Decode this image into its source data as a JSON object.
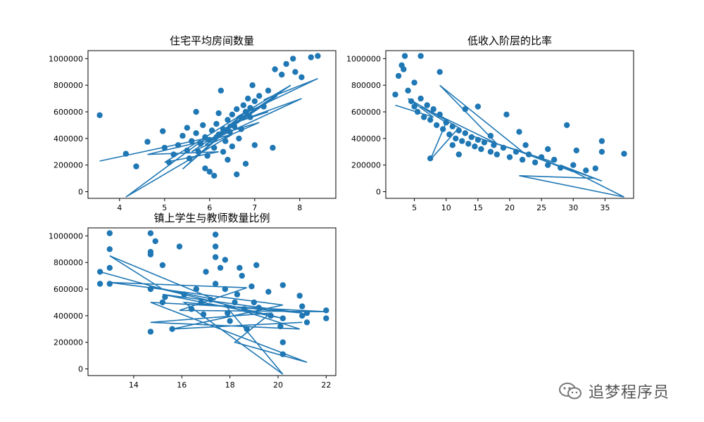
{
  "chart_data": [
    {
      "type": "scatter",
      "title": "住宅平均房间数量",
      "xlim": [
        3.3,
        8.8
      ],
      "ylim": [
        -50000,
        1060000
      ],
      "xticks": [
        4,
        5,
        6,
        7,
        8
      ],
      "yticks": [
        0,
        200000,
        400000,
        600000,
        800000,
        1000000
      ],
      "color": "#1f77b4",
      "points": [
        [
          3.56,
          575000
        ],
        [
          4.14,
          285000
        ],
        [
          4.37,
          190000
        ],
        [
          4.62,
          375000
        ],
        [
          4.96,
          455000
        ],
        [
          5.0,
          330000
        ],
        [
          5.1,
          220000
        ],
        [
          5.2,
          280000
        ],
        [
          5.3,
          350000
        ],
        [
          5.4,
          420000
        ],
        [
          5.5,
          310000
        ],
        [
          5.55,
          250000
        ],
        [
          5.6,
          380000
        ],
        [
          5.7,
          440000
        ],
        [
          5.75,
          300000
        ],
        [
          5.8,
          360000
        ],
        [
          5.85,
          500000
        ],
        [
          5.9,
          410000
        ],
        [
          5.95,
          270000
        ],
        [
          6.0,
          390000
        ],
        [
          6.05,
          460000
        ],
        [
          6.1,
          330000
        ],
        [
          6.15,
          510000
        ],
        [
          6.2,
          430000
        ],
        [
          6.25,
          760000
        ],
        [
          6.3,
          470000
        ],
        [
          6.35,
          380000
        ],
        [
          6.4,
          540000
        ],
        [
          6.45,
          450000
        ],
        [
          6.5,
          580000
        ],
        [
          6.55,
          490000
        ],
        [
          6.6,
          620000
        ],
        [
          6.65,
          400000
        ],
        [
          6.7,
          560000
        ],
        [
          6.75,
          650000
        ],
        [
          6.8,
          600000
        ],
        [
          6.85,
          700000
        ],
        [
          6.9,
          630000
        ],
        [
          6.95,
          800000
        ],
        [
          7.0,
          680000
        ],
        [
          7.1,
          720000
        ],
        [
          7.2,
          640000
        ],
        [
          7.3,
          760000
        ],
        [
          7.4,
          330000
        ],
        [
          7.45,
          920000
        ],
        [
          7.6,
          880000
        ],
        [
          7.7,
          960000
        ],
        [
          7.85,
          1000000
        ],
        [
          7.9,
          900000
        ],
        [
          8.04,
          860000
        ],
        [
          8.25,
          1010000
        ],
        [
          8.4,
          1020000
        ],
        [
          6.0,
          150000
        ],
        [
          6.1,
          120000
        ],
        [
          6.4,
          240000
        ],
        [
          5.9,
          175000
        ],
        [
          6.6,
          130000
        ],
        [
          6.8,
          210000
        ],
        [
          5.7,
          600000
        ],
        [
          5.5,
          480000
        ],
        [
          6.3,
          300000
        ],
        [
          6.5,
          340000
        ],
        [
          6.2,
          590000
        ],
        [
          6.7,
          470000
        ],
        [
          6.9,
          560000
        ],
        [
          7.0,
          350000
        ]
      ],
      "line": [
        [
          3.56,
          230000
        ],
        [
          5.9,
          400000
        ],
        [
          4.14,
          -40000
        ],
        [
          6.5,
          430000
        ],
        [
          4.62,
          280000
        ],
        [
          6.2,
          300000
        ],
        [
          5.0,
          220000
        ],
        [
          7.0,
          640000
        ],
        [
          5.4,
          170000
        ],
        [
          6.8,
          600000
        ],
        [
          5.9,
          350000
        ],
        [
          7.5,
          720000
        ],
        [
          6.1,
          420000
        ],
        [
          7.1,
          520000
        ],
        [
          5.6,
          300000
        ],
        [
          7.8,
          800000
        ],
        [
          6.6,
          560000
        ],
        [
          8.4,
          850000
        ],
        [
          7.2,
          690000
        ],
        [
          7.6,
          750000
        ],
        [
          6.0,
          380000
        ],
        [
          8.04,
          700000
        ],
        [
          6.4,
          500000
        ],
        [
          7.3,
          600000
        ]
      ]
    },
    {
      "type": "scatter",
      "title": "低收入阶层的比率",
      "xlim": [
        0.5,
        39.5
      ],
      "ylim": [
        -50000,
        1060000
      ],
      "xticks": [
        5,
        10,
        15,
        20,
        25,
        30,
        35
      ],
      "yticks": [
        0,
        200000,
        400000,
        600000,
        800000,
        1000000
      ],
      "color": "#1f77b4",
      "points": [
        [
          2.0,
          730000
        ],
        [
          2.5,
          870000
        ],
        [
          3.0,
          950000
        ],
        [
          3.3,
          920000
        ],
        [
          3.5,
          1020000
        ],
        [
          4.0,
          760000
        ],
        [
          4.5,
          680000
        ],
        [
          5.0,
          820000
        ],
        [
          5.5,
          600000
        ],
        [
          6.0,
          1020000
        ],
        [
          6.0,
          700000
        ],
        [
          6.5,
          560000
        ],
        [
          7.0,
          650000
        ],
        [
          7.5,
          540000
        ],
        [
          8.0,
          620000
        ],
        [
          8.5,
          500000
        ],
        [
          9.0,
          580000
        ],
        [
          9.5,
          470000
        ],
        [
          10.0,
          520000
        ],
        [
          10.5,
          430000
        ],
        [
          11.0,
          490000
        ],
        [
          11.5,
          400000
        ],
        [
          12.0,
          460000
        ],
        [
          12.5,
          380000
        ],
        [
          13.0,
          440000
        ],
        [
          13.5,
          360000
        ],
        [
          14.0,
          410000
        ],
        [
          14.5,
          340000
        ],
        [
          15.0,
          390000
        ],
        [
          15.5,
          320000
        ],
        [
          16.0,
          370000
        ],
        [
          17.0,
          300000
        ],
        [
          17.5,
          350000
        ],
        [
          18.0,
          280000
        ],
        [
          19.0,
          330000
        ],
        [
          19.5,
          580000
        ],
        [
          20.0,
          260000
        ],
        [
          21.0,
          300000
        ],
        [
          21.5,
          450000
        ],
        [
          22.0,
          240000
        ],
        [
          23.0,
          280000
        ],
        [
          24.0,
          220000
        ],
        [
          25.0,
          260000
        ],
        [
          26.0,
          200000
        ],
        [
          27.0,
          240000
        ],
        [
          28.0,
          180000
        ],
        [
          29.0,
          500000
        ],
        [
          30.0,
          200000
        ],
        [
          30.5,
          310000
        ],
        [
          32.0,
          160000
        ],
        [
          33.5,
          175000
        ],
        [
          34.5,
          380000
        ],
        [
          34.5,
          300000
        ],
        [
          38.0,
          285000
        ],
        [
          7.5,
          250000
        ],
        [
          9.0,
          900000
        ],
        [
          5.0,
          640000
        ],
        [
          13.0,
          620000
        ],
        [
          15.0,
          640000
        ],
        [
          11.0,
          350000
        ],
        [
          17.0,
          420000
        ],
        [
          22.5,
          350000
        ],
        [
          26.0,
          320000
        ],
        [
          12.0,
          280000
        ]
      ],
      "line": [
        [
          2.0,
          650000
        ],
        [
          8.0,
          560000
        ],
        [
          4.0,
          700000
        ],
        [
          12.0,
          480000
        ],
        [
          7.5,
          240000
        ],
        [
          10.0,
          520000
        ],
        [
          6.0,
          640000
        ],
        [
          18.0,
          360000
        ],
        [
          9.0,
          800000
        ],
        [
          22.0,
          300000
        ],
        [
          14.0,
          420000
        ],
        [
          27.0,
          220000
        ],
        [
          20.0,
          330000
        ],
        [
          30.0,
          150000
        ],
        [
          24.0,
          260000
        ],
        [
          34.5,
          80000
        ],
        [
          28.0,
          200000
        ],
        [
          38.0,
          -40000
        ],
        [
          21.5,
          120000
        ],
        [
          33.5,
          100000
        ]
      ]
    },
    {
      "type": "scatter",
      "title": "镇上学生与教师数量比例",
      "xlim": [
        12.1,
        22.4
      ],
      "ylim": [
        -50000,
        1060000
      ],
      "xticks": [
        14,
        16,
        18,
        20,
        22
      ],
      "yticks": [
        0,
        200000,
        400000,
        600000,
        800000,
        1000000
      ],
      "color": "#1f77b4",
      "points": [
        [
          12.6,
          730000
        ],
        [
          12.6,
          640000
        ],
        [
          13.0,
          1020000
        ],
        [
          13.0,
          900000
        ],
        [
          13.0,
          760000
        ],
        [
          13.0,
          640000
        ],
        [
          14.7,
          1020000
        ],
        [
          14.7,
          880000
        ],
        [
          14.7,
          860000
        ],
        [
          14.7,
          600000
        ],
        [
          14.7,
          280000
        ],
        [
          14.9,
          960000
        ],
        [
          15.2,
          500000
        ],
        [
          15.2,
          780000
        ],
        [
          15.6,
          300000
        ],
        [
          15.9,
          920000
        ],
        [
          16.1,
          560000
        ],
        [
          16.4,
          450000
        ],
        [
          16.6,
          600000
        ],
        [
          16.9,
          410000
        ],
        [
          17.0,
          730000
        ],
        [
          17.4,
          1010000
        ],
        [
          17.4,
          920000
        ],
        [
          17.4,
          840000
        ],
        [
          17.4,
          640000
        ],
        [
          17.6,
          760000
        ],
        [
          17.8,
          820000
        ],
        [
          17.8,
          600000
        ],
        [
          17.9,
          420000
        ],
        [
          18.0,
          360000
        ],
        [
          18.2,
          500000
        ],
        [
          18.4,
          760000
        ],
        [
          18.5,
          700000
        ],
        [
          18.6,
          450000
        ],
        [
          18.7,
          300000
        ],
        [
          18.9,
          620000
        ],
        [
          19.1,
          780000
        ],
        [
          19.2,
          460000
        ],
        [
          19.6,
          580000
        ],
        [
          19.7,
          400000
        ],
        [
          20.1,
          320000
        ],
        [
          20.2,
          630000
        ],
        [
          20.2,
          380000
        ],
        [
          20.2,
          200000
        ],
        [
          20.2,
          110000
        ],
        [
          20.9,
          550000
        ],
        [
          21.0,
          470000
        ],
        [
          21.0,
          400000
        ],
        [
          21.2,
          420000
        ],
        [
          21.2,
          350000
        ],
        [
          22.0,
          440000
        ],
        [
          22.0,
          380000
        ],
        [
          15.3,
          540000
        ],
        [
          16.8,
          500000
        ],
        [
          17.2,
          520000
        ],
        [
          18.3,
          560000
        ],
        [
          19.0,
          500000
        ]
      ],
      "line": [
        [
          12.6,
          730000
        ],
        [
          15.2,
          600000
        ],
        [
          13.0,
          850000
        ],
        [
          17.4,
          520000
        ],
        [
          14.7,
          620000
        ],
        [
          20.2,
          380000
        ],
        [
          15.2,
          560000
        ],
        [
          21.0,
          420000
        ],
        [
          16.1,
          500000
        ],
        [
          20.2,
          -40000
        ],
        [
          17.8,
          480000
        ],
        [
          20.9,
          300000
        ],
        [
          14.7,
          350000
        ],
        [
          19.7,
          420000
        ],
        [
          18.2,
          200000
        ],
        [
          21.2,
          50000
        ],
        [
          14.7,
          500000
        ],
        [
          22.0,
          430000
        ],
        [
          15.9,
          440000
        ],
        [
          18.7,
          610000
        ],
        [
          13.0,
          650000
        ],
        [
          20.2,
          480000
        ],
        [
          15.6,
          300000
        ],
        [
          21.0,
          350000
        ]
      ]
    }
  ],
  "watermark": {
    "text": "追梦程序员",
    "icon": "wechat-icon"
  }
}
